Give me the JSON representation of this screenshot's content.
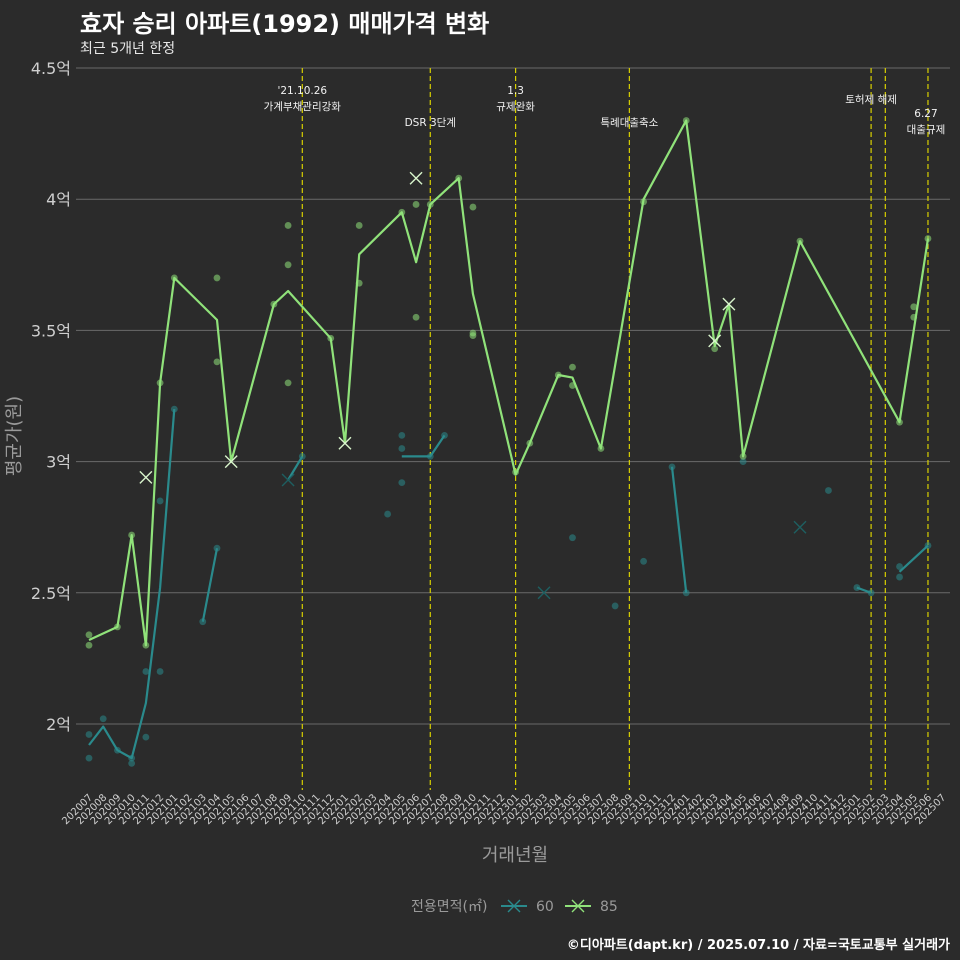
{
  "header": {
    "title": "효자 승리 아파트(1992) 매매가격 변화",
    "subtitle": "최근 5개년 한정"
  },
  "footer": {
    "caption": "©디아파트(dapt.kr) / 2025.07.10 / 자료=국토교통부 실거래가"
  },
  "legend": {
    "title": "전용면적(㎡)",
    "items": [
      {
        "label": "60",
        "color": "#2a8a8c"
      },
      {
        "label": "85",
        "color": "#90e27a"
      }
    ]
  },
  "chart_data": {
    "type": "line",
    "title": "효자 승리 아파트(1992) 매매가격 변화",
    "xlabel": "거래년월",
    "ylabel": "평균가(원)",
    "ylim": [
      1.72,
      4.5
    ],
    "y_ticks": [
      {
        "value": 2.0,
        "label": "2억"
      },
      {
        "value": 2.5,
        "label": "2.5억"
      },
      {
        "value": 3.0,
        "label": "3억"
      },
      {
        "value": 3.5,
        "label": "3.5억"
      },
      {
        "value": 4.0,
        "label": "4억"
      },
      {
        "value": 4.5,
        "label": "4.5억"
      }
    ],
    "months": [
      "202007",
      "202008",
      "202009",
      "202010",
      "202011",
      "202012",
      "202101",
      "202102",
      "202103",
      "202104",
      "202105",
      "202106",
      "202107",
      "202108",
      "202109",
      "202110",
      "202111",
      "202112",
      "202201",
      "202202",
      "202203",
      "202204",
      "202205",
      "202206",
      "202207",
      "202208",
      "202209",
      "202210",
      "202211",
      "202212",
      "202301",
      "202302",
      "202303",
      "202304",
      "202305",
      "202306",
      "202307",
      "202308",
      "202309",
      "202310",
      "202311",
      "202312",
      "202401",
      "202402",
      "202403",
      "202404",
      "202405",
      "202406",
      "202407",
      "202408",
      "202409",
      "202410",
      "202411",
      "202412",
      "202501",
      "202502",
      "202503",
      "202504",
      "202505",
      "202506",
      "202507"
    ],
    "annotations": [
      {
        "month": "202110",
        "lines": [
          "'21.10.26",
          "가계부채관리강화"
        ]
      },
      {
        "month": "202207",
        "lines": [
          "DSR 3단계"
        ]
      },
      {
        "month": "202301",
        "lines": [
          "1.3",
          "규제완화"
        ]
      },
      {
        "month": "202309",
        "lines": [
          "특례대출축소"
        ]
      },
      {
        "month": "202502",
        "lines": [
          "토허제 해제"
        ]
      },
      {
        "month": "202503",
        "lines": []
      },
      {
        "month": "202506",
        "lines": [
          "6.27",
          "대출규제"
        ]
      }
    ],
    "series": [
      {
        "name": "60",
        "color": "#2a8a8c",
        "segments": [
          [
            [
              "202007",
              1.92
            ],
            [
              "202008",
              1.99
            ],
            [
              "202009",
              1.9
            ],
            [
              "202010",
              1.87
            ],
            [
              "202011",
              2.08
            ],
            [
              "202012",
              2.52
            ],
            [
              "202101",
              3.2
            ]
          ],
          [
            [
              "202103",
              2.39
            ],
            [
              "202104",
              2.67
            ]
          ],
          [
            [
              "202109",
              2.93
            ],
            [
              "202110",
              3.02
            ]
          ],
          [
            [
              "202205",
              3.02
            ],
            [
              "202206",
              3.02
            ],
            [
              "202207",
              3.02
            ],
            [
              "202208",
              3.1
            ]
          ],
          [
            [
              "202312",
              2.98
            ],
            [
              "202401",
              2.5
            ]
          ],
          [
            [
              "202501",
              2.52
            ],
            [
              "202502",
              2.5
            ]
          ],
          [
            [
              "202504",
              2.58
            ],
            [
              "202506",
              2.68
            ]
          ]
        ],
        "points": [
          [
            "202007",
            1.96
          ],
          [
            "202007",
            1.87
          ],
          [
            "202008",
            2.02
          ],
          [
            "202009",
            1.9
          ],
          [
            "202010",
            1.85
          ],
          [
            "202010",
            1.87
          ],
          [
            "202011",
            2.2
          ],
          [
            "202011",
            1.95
          ],
          [
            "202012",
            2.85
          ],
          [
            "202012",
            2.2
          ],
          [
            "202101",
            3.2
          ],
          [
            "202103",
            2.39
          ],
          [
            "202104",
            2.67
          ],
          [
            "202110",
            3.02
          ],
          [
            "202204",
            2.8
          ],
          [
            "202205",
            2.92
          ],
          [
            "202205",
            3.05
          ],
          [
            "202205",
            3.1
          ],
          [
            "202207",
            3.02
          ],
          [
            "202208",
            3.1
          ],
          [
            "202305",
            2.71
          ],
          [
            "202308",
            2.45
          ],
          [
            "202310",
            2.62
          ],
          [
            "202312",
            2.98
          ],
          [
            "202401",
            2.5
          ],
          [
            "202405",
            3.0
          ],
          [
            "202411",
            2.89
          ],
          [
            "202501",
            2.52
          ],
          [
            "202502",
            2.5
          ],
          [
            "202504",
            2.6
          ],
          [
            "202504",
            2.56
          ],
          [
            "202506",
            2.68
          ]
        ],
        "crosses": [
          [
            "202109",
            2.93
          ],
          [
            "202303",
            2.5
          ],
          [
            "202409",
            2.75
          ]
        ]
      },
      {
        "name": "85",
        "color": "#90e27a",
        "segments": [
          [
            [
              "202007",
              2.32
            ],
            [
              "202009",
              2.37
            ],
            [
              "202010",
              2.72
            ],
            [
              "202011",
              2.3
            ],
            [
              "202012",
              3.3
            ],
            [
              "202101",
              3.7
            ],
            [
              "202104",
              3.54
            ],
            [
              "202105",
              3.0
            ],
            [
              "202108",
              3.6
            ],
            [
              "202109",
              3.65
            ],
            [
              "202112",
              3.47
            ],
            [
              "202201",
              3.07
            ],
            [
              "202202",
              3.79
            ],
            [
              "202205",
              3.95
            ],
            [
              "202206",
              3.76
            ],
            [
              "202207",
              3.98
            ],
            [
              "202209",
              4.08
            ],
            [
              "202210",
              3.64
            ],
            [
              "202301",
              2.95
            ],
            [
              "202302",
              3.07
            ],
            [
              "202304",
              3.33
            ],
            [
              "202305",
              3.32
            ],
            [
              "202307",
              3.05
            ],
            [
              "202310",
              4.0
            ],
            [
              "202401",
              4.3
            ],
            [
              "202403",
              3.44
            ],
            [
              "202404",
              3.6
            ],
            [
              "202405",
              3.02
            ],
            [
              "202409",
              3.84
            ],
            [
              "202504",
              3.15
            ],
            [
              "202506",
              3.85
            ]
          ]
        ],
        "points": [
          [
            "202007",
            2.34
          ],
          [
            "202007",
            2.3
          ],
          [
            "202009",
            2.37
          ],
          [
            "202010",
            2.72
          ],
          [
            "202011",
            2.3
          ],
          [
            "202012",
            3.3
          ],
          [
            "202101",
            3.7
          ],
          [
            "202104",
            3.38
          ],
          [
            "202104",
            3.7
          ],
          [
            "202108",
            3.6
          ],
          [
            "202109",
            3.9
          ],
          [
            "202109",
            3.75
          ],
          [
            "202109",
            3.3
          ],
          [
            "202112",
            3.47
          ],
          [
            "202202",
            3.9
          ],
          [
            "202202",
            3.68
          ],
          [
            "202205",
            3.95
          ],
          [
            "202206",
            3.98
          ],
          [
            "202206",
            3.55
          ],
          [
            "202207",
            3.98
          ],
          [
            "202209",
            4.08
          ],
          [
            "202210",
            3.97
          ],
          [
            "202210",
            3.49
          ],
          [
            "202210",
            3.48
          ],
          [
            "202301",
            2.96
          ],
          [
            "202302",
            3.07
          ],
          [
            "202304",
            3.33
          ],
          [
            "202305",
            3.36
          ],
          [
            "202305",
            3.29
          ],
          [
            "202307",
            3.05
          ],
          [
            "202310",
            3.99
          ],
          [
            "202401",
            4.3
          ],
          [
            "202403",
            3.43
          ],
          [
            "202405",
            3.02
          ],
          [
            "202409",
            3.84
          ],
          [
            "202504",
            3.15
          ],
          [
            "202505",
            3.59
          ],
          [
            "202505",
            3.55
          ],
          [
            "202506",
            3.85
          ]
        ],
        "crosses": [
          [
            "202011",
            2.94
          ],
          [
            "202105",
            3.0
          ],
          [
            "202201",
            3.07
          ],
          [
            "202206",
            4.08
          ],
          [
            "202403",
            3.46
          ],
          [
            "202404",
            3.6
          ]
        ]
      }
    ]
  }
}
